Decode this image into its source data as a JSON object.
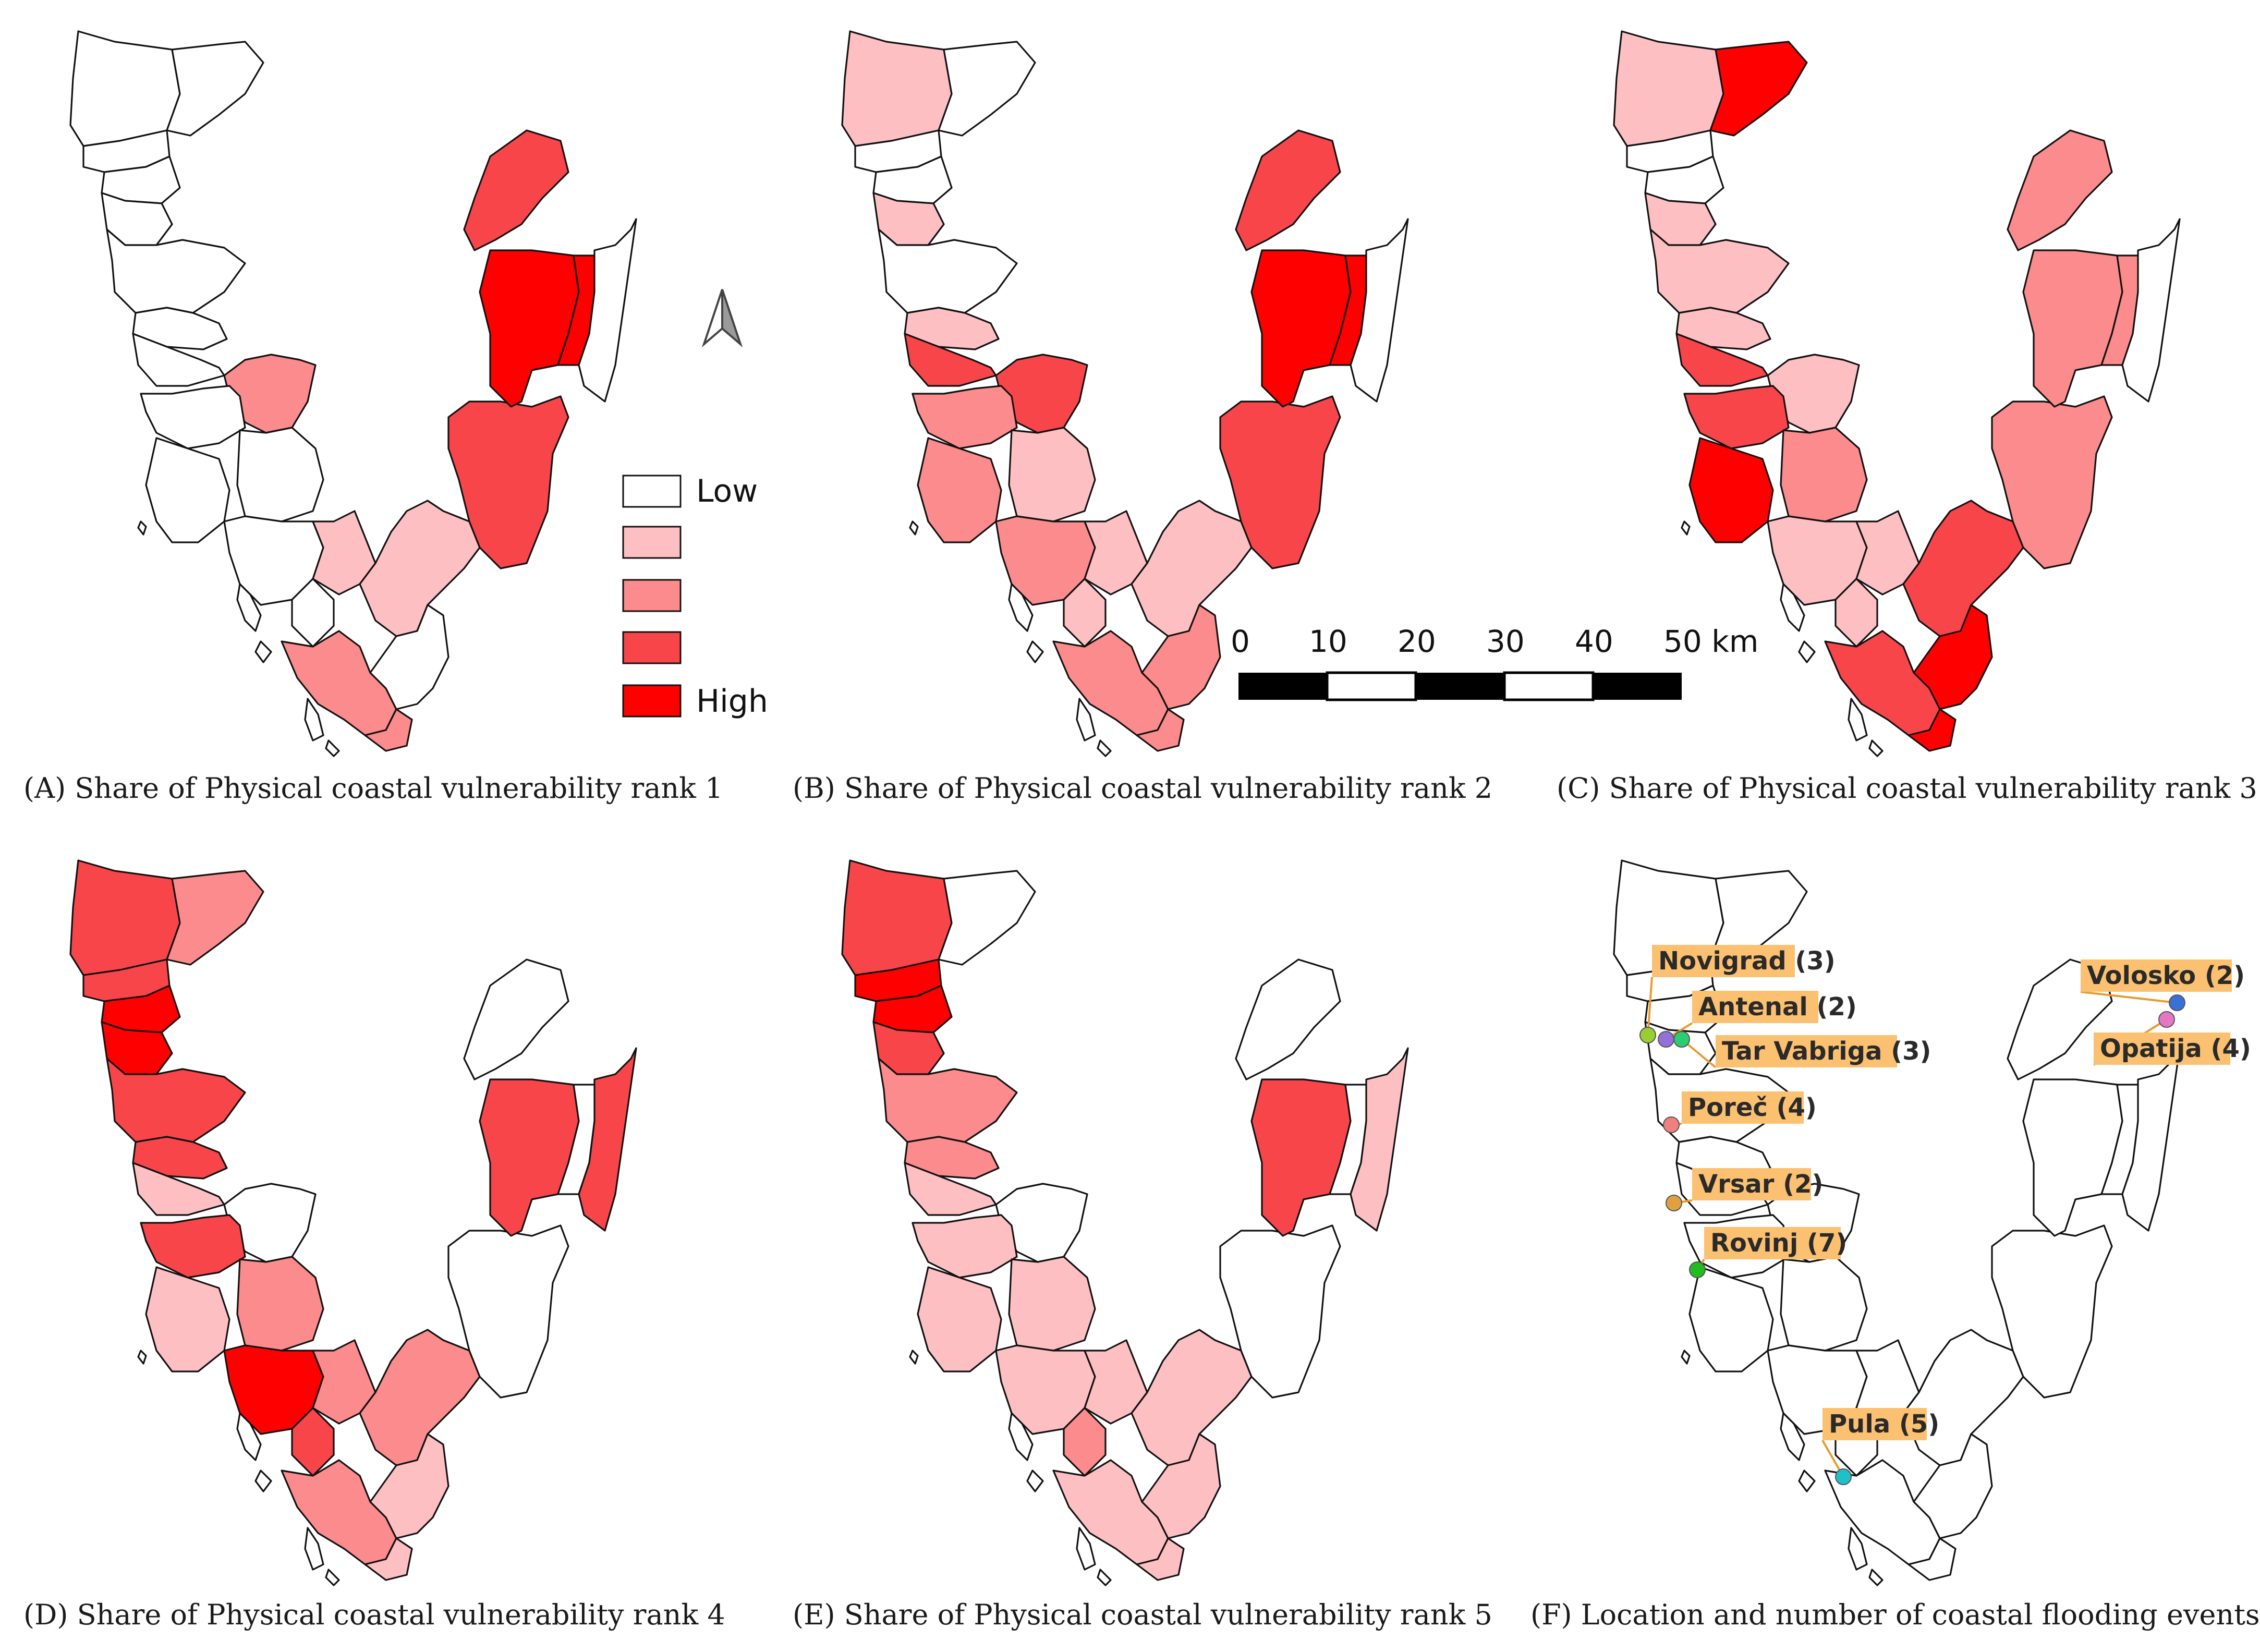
{
  "colors": {
    "class0": "#ffffff",
    "class1": "#fdbfc2",
    "class2": "#fb8b8c",
    "class3": "#f8454a",
    "class4": "#ff0000",
    "label_bg": "#fcc071"
  },
  "legend": {
    "low": "Low",
    "high": "High"
  },
  "scalebar": {
    "ticks": [
      "0",
      "10",
      "20",
      "30",
      "40",
      "50 km"
    ]
  },
  "north_arrow": "north-arrow-icon",
  "panels": [
    {
      "caption": "(A) Share of Physical coastal vulnerability rank 1",
      "classes": [
        0,
        0,
        0,
        0,
        0,
        0,
        0,
        0,
        2,
        0,
        0,
        0,
        0,
        0,
        1,
        1,
        2,
        2,
        0,
        3,
        3,
        4,
        4,
        0
      ]
    },
    {
      "caption": "(B) Share of Physical coastal vulnerability rank 2",
      "classes": [
        1,
        0,
        0,
        0,
        1,
        0,
        1,
        3,
        3,
        2,
        2,
        1,
        2,
        1,
        1,
        1,
        2,
        2,
        2,
        3,
        3,
        4,
        4,
        0
      ]
    },
    {
      "caption": "(C) Share of Physical coastal vulnerability rank 3",
      "classes": [
        1,
        4,
        0,
        0,
        1,
        1,
        1,
        3,
        1,
        3,
        4,
        2,
        1,
        1,
        1,
        3,
        3,
        4,
        4,
        2,
        2,
        2,
        2,
        0
      ]
    },
    {
      "caption": "(D) Share of Physical coastal vulnerability rank 4",
      "classes": [
        3,
        2,
        3,
        4,
        4,
        3,
        3,
        1,
        0,
        3,
        1,
        2,
        4,
        3,
        2,
        2,
        2,
        1,
        1,
        0,
        0,
        3,
        0,
        3
      ]
    },
    {
      "caption": "(E) Share of Physical coastal vulnerability rank 5",
      "classes": [
        3,
        0,
        4,
        4,
        3,
        2,
        2,
        1,
        0,
        1,
        1,
        1,
        1,
        2,
        1,
        1,
        1,
        1,
        1,
        0,
        0,
        3,
        0,
        1
      ]
    },
    {
      "caption": "(F) Location and number of coastal flooding events",
      "classes": [
        0,
        0,
        0,
        0,
        0,
        0,
        0,
        0,
        0,
        0,
        0,
        0,
        0,
        0,
        0,
        0,
        0,
        0,
        0,
        0,
        0,
        0,
        0,
        0
      ]
    }
  ],
  "flood_events": [
    {
      "name": "Novigrad (3)",
      "color": "#9acd32"
    },
    {
      "name": "Antenal (2)",
      "color": "#9370db"
    },
    {
      "name": "Tar Vabriga (3)",
      "color": "#2ecc71"
    },
    {
      "name": "Poreč (4)",
      "color": "#f08080"
    },
    {
      "name": "Vrsar (2)",
      "color": "#e0a040"
    },
    {
      "name": "Rovinj (7)",
      "color": "#22bb22"
    },
    {
      "name": "Pula (5)",
      "color": "#20c0c8"
    },
    {
      "name": "Volosko (2)",
      "color": "#3a6fd8"
    },
    {
      "name": "Opatija (4)",
      "color": "#e377c2"
    }
  ]
}
